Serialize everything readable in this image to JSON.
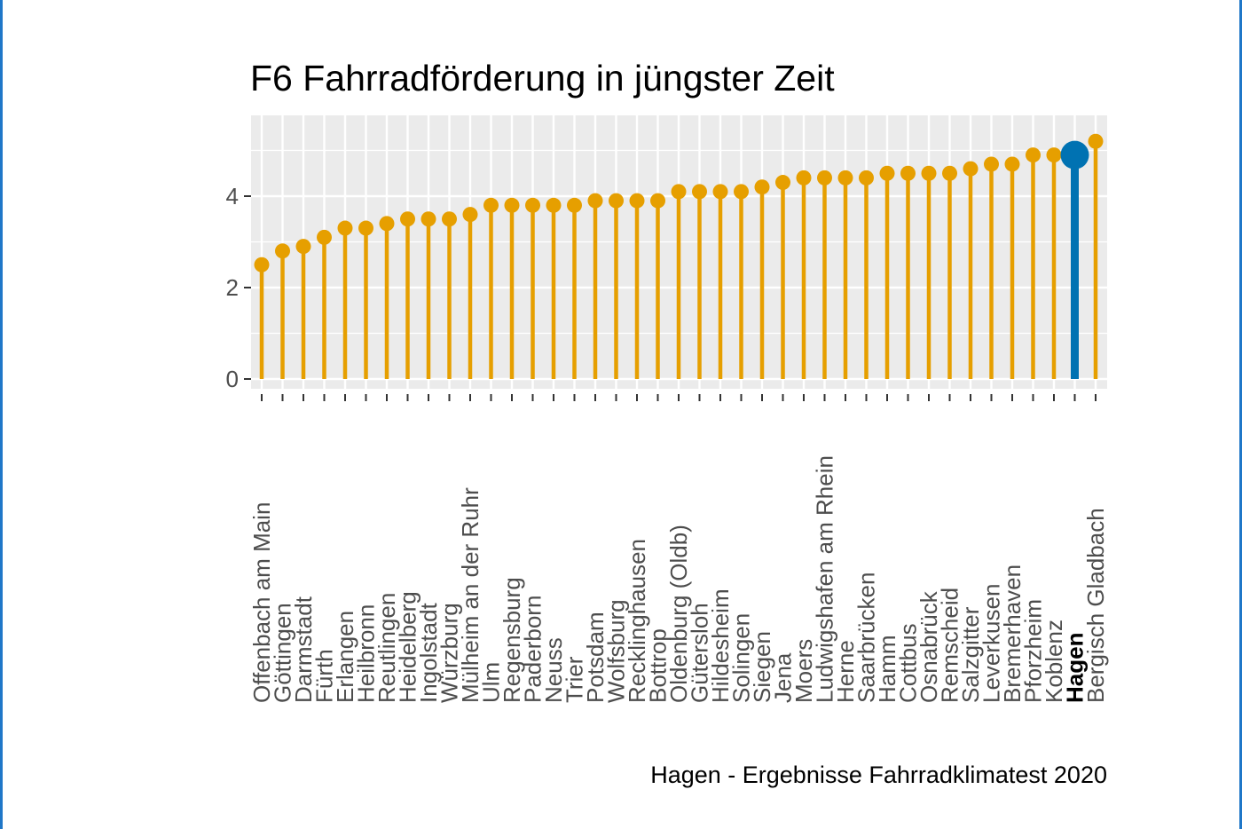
{
  "chart_data": {
    "type": "lollipop",
    "title": "F6 Fahrradförderung in jüngster Zeit",
    "caption": "Hagen - Ergebnisse Fahrradklimatest 2020",
    "xlabel": "",
    "ylabel": "",
    "ylim": [
      -0.2,
      5.5
    ],
    "yticks": [
      0,
      2,
      4
    ],
    "grid": true,
    "highlight": "Hagen",
    "colors": {
      "default": "#E69F00",
      "highlight": "#0072B2",
      "panel": "#EBEBEB",
      "grid": "#FFFFFF"
    },
    "categories": [
      "Offenbach am Main",
      "Göttingen",
      "Darmstadt",
      "Fürth",
      "Erlangen",
      "Heilbronn",
      "Reutlingen",
      "Heidelberg",
      "Ingolstadt",
      "Würzburg",
      "Mülheim an der Ruhr",
      "Ulm",
      "Regensburg",
      "Paderborn",
      "Neuss",
      "Trier",
      "Potsdam",
      "Wolfsburg",
      "Recklinghausen",
      "Bottrop",
      "Oldenburg (Oldb)",
      "Gütersloh",
      "Hildesheim",
      "Solingen",
      "Siegen",
      "Jena",
      "Moers",
      "Ludwigshafen am Rhein",
      "Herne",
      "Saarbrücken",
      "Hamm",
      "Cottbus",
      "Osnabrück",
      "Remscheid",
      "Salzgitter",
      "Leverkusen",
      "Bremerhaven",
      "Pforzheim",
      "Koblenz",
      "Hagen",
      "Bergisch Gladbach"
    ],
    "values": [
      2.5,
      2.8,
      2.9,
      3.1,
      3.3,
      3.3,
      3.4,
      3.5,
      3.5,
      3.5,
      3.6,
      3.8,
      3.8,
      3.8,
      3.8,
      3.8,
      3.9,
      3.9,
      3.9,
      3.9,
      4.1,
      4.1,
      4.1,
      4.1,
      4.2,
      4.3,
      4.4,
      4.4,
      4.4,
      4.4,
      4.5,
      4.5,
      4.5,
      4.5,
      4.6,
      4.7,
      4.7,
      4.9,
      4.9,
      4.9,
      5.2
    ]
  }
}
